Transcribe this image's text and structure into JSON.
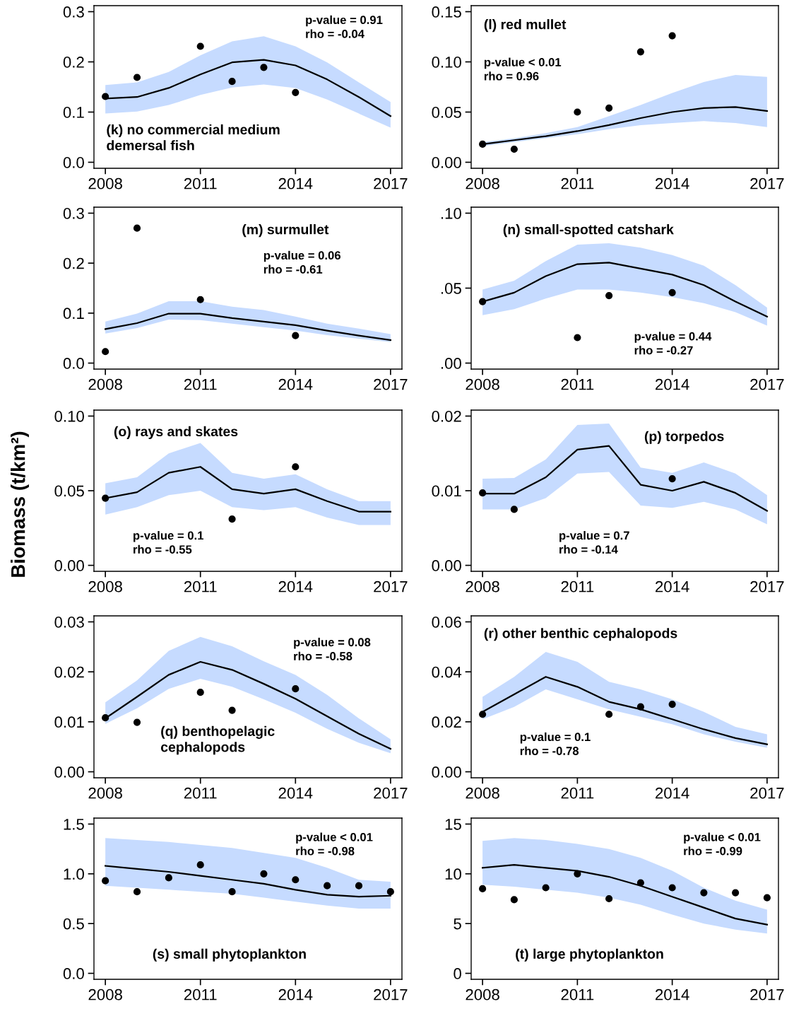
{
  "chart_data": [
    {
      "type": "line",
      "title": "(k) no commercial medium\ndemersal fish",
      "annotations": [
        "p-value = 0.91\nrho = -0.04"
      ],
      "xlim": [
        2007.64,
        2017.36
      ],
      "ylim": [
        -0.012,
        0.312
      ],
      "xticks": [
        2008,
        2011,
        2014,
        2017
      ],
      "yticks": [
        {
          "value": 0,
          "label": "0.0"
        },
        0.1,
        0.2,
        0.3
      ],
      "series": [
        {
          "type": "line",
          "color": "#000000",
          "marker": "none",
          "x": [
            2008,
            2009,
            2010,
            2011,
            2012,
            2013,
            2014,
            2015,
            2016,
            2017
          ],
          "values": [
            0.127,
            0.13,
            0.148,
            0.175,
            0.199,
            0.204,
            0.193,
            0.165,
            0.13,
            0.092
          ],
          "lower": [
            0.097,
            0.101,
            0.114,
            0.134,
            0.149,
            0.155,
            0.148,
            0.125,
            0.097,
            0.069
          ],
          "upper": [
            0.154,
            0.159,
            0.18,
            0.213,
            0.241,
            0.251,
            0.231,
            0.199,
            0.159,
            0.12
          ]
        },
        {
          "type": "scatter",
          "color": "#000000",
          "marker": "circle",
          "x": [
            2008,
            2009,
            2011,
            2012,
            2013,
            2014
          ],
          "values": [
            0.131,
            0.169,
            0.231,
            0.161,
            0.189,
            0.139
          ]
        }
      ]
    },
    {
      "type": "line",
      "title": "(l) red mullet",
      "annotations": [
        "p-value < 0.01\nrho = 0.96"
      ],
      "xlim": [
        2007.64,
        2017.36
      ],
      "ylim": [
        -0.006,
        0.156
      ],
      "xticks": [
        2008,
        2011,
        2014,
        2017
      ],
      "yticks": [
        {
          "value": 0,
          "label": "0.00"
        },
        0.05,
        {
          "value": 0.1,
          "label": "0.10"
        },
        0.15
      ],
      "series": [
        {
          "type": "line",
          "color": "#000000",
          "marker": "none",
          "x": [
            2008,
            2009,
            2010,
            2011,
            2012,
            2013,
            2014,
            2015,
            2016,
            2017
          ],
          "values": [
            0.018,
            0.022,
            0.026,
            0.031,
            0.037,
            0.044,
            0.05,
            0.054,
            0.055,
            0.051
          ],
          "lower": [
            0.016,
            0.02,
            0.024,
            0.028,
            0.033,
            0.037,
            0.039,
            0.041,
            0.039,
            0.035
          ],
          "upper": [
            0.02,
            0.024,
            0.029,
            0.035,
            0.046,
            0.057,
            0.069,
            0.08,
            0.087,
            0.085
          ]
        },
        {
          "type": "scatter",
          "color": "#000000",
          "marker": "circle",
          "x": [
            2008,
            2009,
            2011,
            2012,
            2013,
            2014
          ],
          "values": [
            0.018,
            0.013,
            0.05,
            0.054,
            0.11,
            0.126
          ]
        }
      ]
    },
    {
      "type": "line",
      "title": "(m) surmullet",
      "annotations": [
        "p-value = 0.06\nrho = -0.61"
      ],
      "xlim": [
        2007.64,
        2017.36
      ],
      "ylim": [
        -0.012,
        0.312
      ],
      "xticks": [
        2008,
        2011,
        2014,
        2017
      ],
      "yticks": [
        {
          "value": 0,
          "label": "0.0"
        },
        0.1,
        0.2,
        0.3
      ],
      "series": [
        {
          "type": "line",
          "color": "#000000",
          "marker": "none",
          "x": [
            2008,
            2009,
            2010,
            2011,
            2012,
            2013,
            2014,
            2015,
            2016,
            2017
          ],
          "values": [
            0.068,
            0.08,
            0.099,
            0.099,
            0.09,
            0.083,
            0.076,
            0.065,
            0.055,
            0.046
          ],
          "lower": [
            0.059,
            0.07,
            0.087,
            0.086,
            0.079,
            0.072,
            0.065,
            0.056,
            0.049,
            0.042
          ],
          "upper": [
            0.083,
            0.099,
            0.124,
            0.124,
            0.113,
            0.106,
            0.093,
            0.079,
            0.069,
            0.058
          ]
        },
        {
          "type": "scatter",
          "color": "#000000",
          "marker": "circle",
          "x": [
            2008,
            2009,
            2011,
            2014
          ],
          "values": [
            0.023,
            0.27,
            0.127,
            0.055
          ]
        }
      ]
    },
    {
      "type": "line",
      "title": "(n) small-spotted catshark",
      "annotations": [
        "p-value = 0.44\nrho = -0.27"
      ],
      "xlim": [
        2007.64,
        2017.36
      ],
      "ylim": [
        -0.004,
        0.104
      ],
      "xticks": [
        2008,
        2011,
        2014,
        2017
      ],
      "yticks": [
        {
          "value": 0,
          "label": ".00"
        },
        {
          "value": 0.05,
          "label": ".05"
        },
        {
          "value": 0.1,
          "label": ".10"
        }
      ],
      "series": [
        {
          "type": "line",
          "color": "#000000",
          "marker": "none",
          "x": [
            2008,
            2009,
            2010,
            2011,
            2012,
            2013,
            2014,
            2015,
            2016,
            2017
          ],
          "values": [
            0.041,
            0.047,
            0.058,
            0.066,
            0.067,
            0.063,
            0.059,
            0.052,
            0.041,
            0.031
          ],
          "lower": [
            0.032,
            0.036,
            0.043,
            0.049,
            0.049,
            0.047,
            0.044,
            0.04,
            0.034,
            0.025
          ],
          "upper": [
            0.049,
            0.055,
            0.068,
            0.079,
            0.08,
            0.077,
            0.072,
            0.065,
            0.052,
            0.037
          ]
        },
        {
          "type": "scatter",
          "color": "#000000",
          "marker": "circle",
          "x": [
            2008,
            2011,
            2012,
            2014
          ],
          "values": [
            0.041,
            0.017,
            0.045,
            0.047
          ]
        }
      ]
    },
    {
      "type": "line",
      "title": "(o) rays and skates",
      "ylabel": "Biomass (t/km²)",
      "annotations": [
        "p-value = 0.1\nrho = -0.55"
      ],
      "xlim": [
        2007.64,
        2017.36
      ],
      "ylim": [
        -0.004,
        0.104
      ],
      "xticks": [
        2008,
        2011,
        2014,
        2017
      ],
      "yticks": [
        {
          "value": 0,
          "label": "0.00"
        },
        0.05,
        {
          "value": 0.1,
          "label": "0.10"
        }
      ],
      "series": [
        {
          "type": "line",
          "color": "#000000",
          "marker": "none",
          "x": [
            2008,
            2009,
            2010,
            2011,
            2012,
            2013,
            2014,
            2015,
            2016,
            2017
          ],
          "values": [
            0.045,
            0.049,
            0.062,
            0.066,
            0.051,
            0.048,
            0.051,
            0.043,
            0.036,
            0.036
          ],
          "lower": [
            0.034,
            0.039,
            0.047,
            0.05,
            0.039,
            0.037,
            0.039,
            0.032,
            0.027,
            0.027
          ],
          "upper": [
            0.055,
            0.059,
            0.075,
            0.082,
            0.062,
            0.058,
            0.061,
            0.051,
            0.043,
            0.043
          ]
        },
        {
          "type": "scatter",
          "color": "#000000",
          "marker": "circle",
          "x": [
            2008,
            2012,
            2014
          ],
          "values": [
            0.045,
            0.031,
            0.066
          ]
        }
      ]
    },
    {
      "type": "line",
      "title": "(p) torpedos",
      "annotations": [
        "p-value = 0.7\nrho = -0.14"
      ],
      "xlim": [
        2007.64,
        2017.36
      ],
      "ylim": [
        -0.0008,
        0.0208
      ],
      "xticks": [
        2008,
        2011,
        2014,
        2017
      ],
      "yticks": [
        {
          "value": 0,
          "label": "0.00"
        },
        0.01,
        0.02
      ],
      "series": [
        {
          "type": "line",
          "color": "#000000",
          "marker": "none",
          "x": [
            2008,
            2009,
            2010,
            2011,
            2012,
            2013,
            2014,
            2015,
            2016,
            2017
          ],
          "values": [
            0.0096,
            0.0096,
            0.0118,
            0.0155,
            0.016,
            0.0108,
            0.01,
            0.0112,
            0.0097,
            0.0073
          ],
          "lower": [
            0.0075,
            0.0075,
            0.009,
            0.0123,
            0.0125,
            0.008,
            0.0077,
            0.0085,
            0.0075,
            0.0055
          ],
          "upper": [
            0.0116,
            0.0117,
            0.0142,
            0.0188,
            0.019,
            0.0131,
            0.0124,
            0.0138,
            0.0123,
            0.0094
          ]
        },
        {
          "type": "scatter",
          "color": "#000000",
          "marker": "circle",
          "x": [
            2008,
            2009,
            2014
          ],
          "values": [
            0.0097,
            0.0075,
            0.0116
          ]
        }
      ]
    },
    {
      "type": "line",
      "title": "(q) benthopelagic\ncephalopods",
      "annotations": [
        "p-value = 0.08\nrho = -0.58"
      ],
      "xlim": [
        2007.64,
        2017.36
      ],
      "ylim": [
        -0.0012,
        0.0312
      ],
      "xticks": [
        2008,
        2011,
        2014,
        2017
      ],
      "yticks": [
        {
          "value": 0,
          "label": "0.00"
        },
        0.01,
        0.02,
        0.03
      ],
      "series": [
        {
          "type": "line",
          "color": "#000000",
          "marker": "none",
          "x": [
            2008,
            2009,
            2010,
            2011,
            2012,
            2013,
            2014,
            2015,
            2016,
            2017
          ],
          "values": [
            0.0107,
            0.015,
            0.0194,
            0.022,
            0.0204,
            0.0176,
            0.0146,
            0.0111,
            0.0076,
            0.0046
          ],
          "lower": [
            0.0096,
            0.0127,
            0.0166,
            0.0186,
            0.017,
            0.0145,
            0.0118,
            0.0086,
            0.0058,
            0.0037
          ],
          "upper": [
            0.0139,
            0.0183,
            0.0242,
            0.027,
            0.0251,
            0.0221,
            0.0194,
            0.0154,
            0.0107,
            0.0065
          ]
        },
        {
          "type": "scatter",
          "color": "#000000",
          "marker": "circle",
          "x": [
            2008,
            2009,
            2011,
            2012,
            2014
          ],
          "values": [
            0.0108,
            0.0099,
            0.0159,
            0.0123,
            0.0166
          ]
        }
      ]
    },
    {
      "type": "line",
      "title": "(r) other benthic cephalopods",
      "annotations": [
        "p-value = 0.1\nrho = -0.78"
      ],
      "xlim": [
        2007.64,
        2017.36
      ],
      "ylim": [
        -0.0024,
        0.0624
      ],
      "xticks": [
        2008,
        2011,
        2014,
        2017
      ],
      "yticks": [
        {
          "value": 0,
          "label": "0.00"
        },
        0.02,
        0.04,
        0.06
      ],
      "series": [
        {
          "type": "line",
          "color": "#000000",
          "marker": "none",
          "x": [
            2008,
            2009,
            2010,
            2011,
            2012,
            2013,
            2014,
            2015,
            2016,
            2017
          ],
          "values": [
            0.024,
            0.031,
            0.038,
            0.034,
            0.028,
            0.025,
            0.021,
            0.017,
            0.0135,
            0.011
          ],
          "lower": [
            0.021,
            0.026,
            0.033,
            0.029,
            0.025,
            0.022,
            0.019,
            0.015,
            0.012,
            0.0096
          ],
          "upper": [
            0.03,
            0.038,
            0.048,
            0.044,
            0.036,
            0.033,
            0.029,
            0.024,
            0.018,
            0.015
          ]
        },
        {
          "type": "scatter",
          "color": "#000000",
          "marker": "circle",
          "x": [
            2008,
            2012,
            2013,
            2014
          ],
          "values": [
            0.023,
            0.023,
            0.026,
            0.027
          ]
        }
      ]
    },
    {
      "type": "line",
      "title": "(s) small phytoplankton",
      "annotations": [
        "p-value < 0.01\nrho = -0.98"
      ],
      "xlim": [
        2007.64,
        2017.36
      ],
      "ylim": [
        -0.06,
        1.56
      ],
      "xticks": [
        2008,
        2011,
        2014,
        2017
      ],
      "yticks": [
        {
          "value": 0,
          "label": "0.0"
        },
        0.5,
        {
          "value": 1,
          "label": "1.0"
        },
        1.5
      ],
      "series": [
        {
          "type": "line",
          "color": "#000000",
          "marker": "none",
          "x": [
            2008,
            2009,
            2010,
            2011,
            2012,
            2013,
            2014,
            2015,
            2016,
            2017
          ],
          "values": [
            1.08,
            1.05,
            1.02,
            0.98,
            0.94,
            0.9,
            0.84,
            0.79,
            0.77,
            0.78
          ],
          "lower": [
            0.88,
            0.86,
            0.84,
            0.82,
            0.8,
            0.76,
            0.72,
            0.68,
            0.65,
            0.65
          ],
          "upper": [
            1.36,
            1.34,
            1.32,
            1.29,
            1.26,
            1.21,
            1.16,
            1.06,
            0.94,
            0.92
          ]
        },
        {
          "type": "scatter",
          "color": "#000000",
          "marker": "circle",
          "x": [
            2008,
            2009,
            2010,
            2011,
            2012,
            2013,
            2014,
            2015,
            2016,
            2017
          ],
          "values": [
            0.93,
            0.82,
            0.96,
            1.09,
            0.82,
            1.0,
            0.94,
            0.88,
            0.88,
            0.82
          ]
        }
      ]
    },
    {
      "type": "line",
      "title": "(t) large phytoplankton",
      "annotations": [
        "p-value < 0.01\nrho = -0.99"
      ],
      "xlim": [
        2007.64,
        2017.36
      ],
      "ylim": [
        -0.6,
        15.6
      ],
      "xticks": [
        2008,
        2011,
        2014,
        2017
      ],
      "yticks": [
        0,
        5,
        10,
        15
      ],
      "series": [
        {
          "type": "line",
          "color": "#000000",
          "marker": "none",
          "x": [
            2008,
            2009,
            2010,
            2011,
            2012,
            2013,
            2014,
            2015,
            2016,
            2017
          ],
          "values": [
            10.6,
            10.9,
            10.6,
            10.3,
            9.7,
            8.8,
            7.7,
            6.6,
            5.5,
            4.9
          ],
          "lower": [
            8.9,
            8.7,
            8.4,
            8.1,
            7.6,
            6.9,
            5.9,
            5.0,
            4.4,
            4.0
          ],
          "upper": [
            13.3,
            13.6,
            13.4,
            13.0,
            12.5,
            11.6,
            10.3,
            8.6,
            7.3,
            6.4
          ]
        },
        {
          "type": "scatter",
          "color": "#000000",
          "marker": "circle",
          "x": [
            2008,
            2009,
            2010,
            2011,
            2012,
            2013,
            2014,
            2015,
            2016,
            2017
          ],
          "values": [
            8.5,
            7.4,
            8.6,
            10.0,
            7.5,
            9.1,
            8.6,
            8.1,
            8.1,
            7.6
          ]
        }
      ]
    }
  ]
}
